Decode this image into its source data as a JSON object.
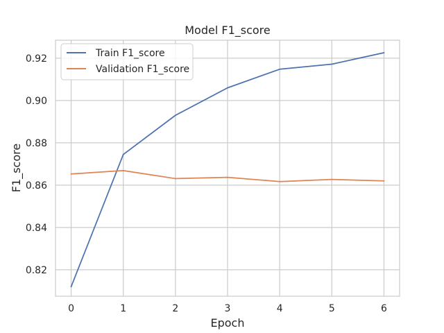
{
  "chart_data": {
    "type": "line",
    "title": "Model F1_score",
    "xlabel": "Epoch",
    "ylabel": "F1_score",
    "x": [
      0,
      1,
      2,
      3,
      4,
      5,
      6
    ],
    "xticks": [
      "0",
      "1",
      "2",
      "3",
      "4",
      "5",
      "6"
    ],
    "yticks": [
      "0.82",
      "0.84",
      "0.86",
      "0.88",
      "0.90",
      "0.92"
    ],
    "ytick_values": [
      0.82,
      0.84,
      0.86,
      0.88,
      0.9,
      0.92
    ],
    "xlim": [
      -0.3,
      6.3
    ],
    "ylim": [
      0.8075,
      0.9285
    ],
    "grid": true,
    "legend_position": "top-left",
    "series": [
      {
        "name": "Train F1_score",
        "color": "#4c72b0",
        "values": [
          0.812,
          0.8745,
          0.893,
          0.906,
          0.9148,
          0.9172,
          0.9226
        ]
      },
      {
        "name": "Validation F1_score",
        "color": "#dd8452",
        "values": [
          0.8653,
          0.8669,
          0.8631,
          0.8637,
          0.8617,
          0.8627,
          0.862
        ]
      }
    ]
  },
  "colors": {
    "grid": "#cccccc",
    "axes_edge": "#cccccc",
    "text": "#262626",
    "background": "#ffffff"
  }
}
